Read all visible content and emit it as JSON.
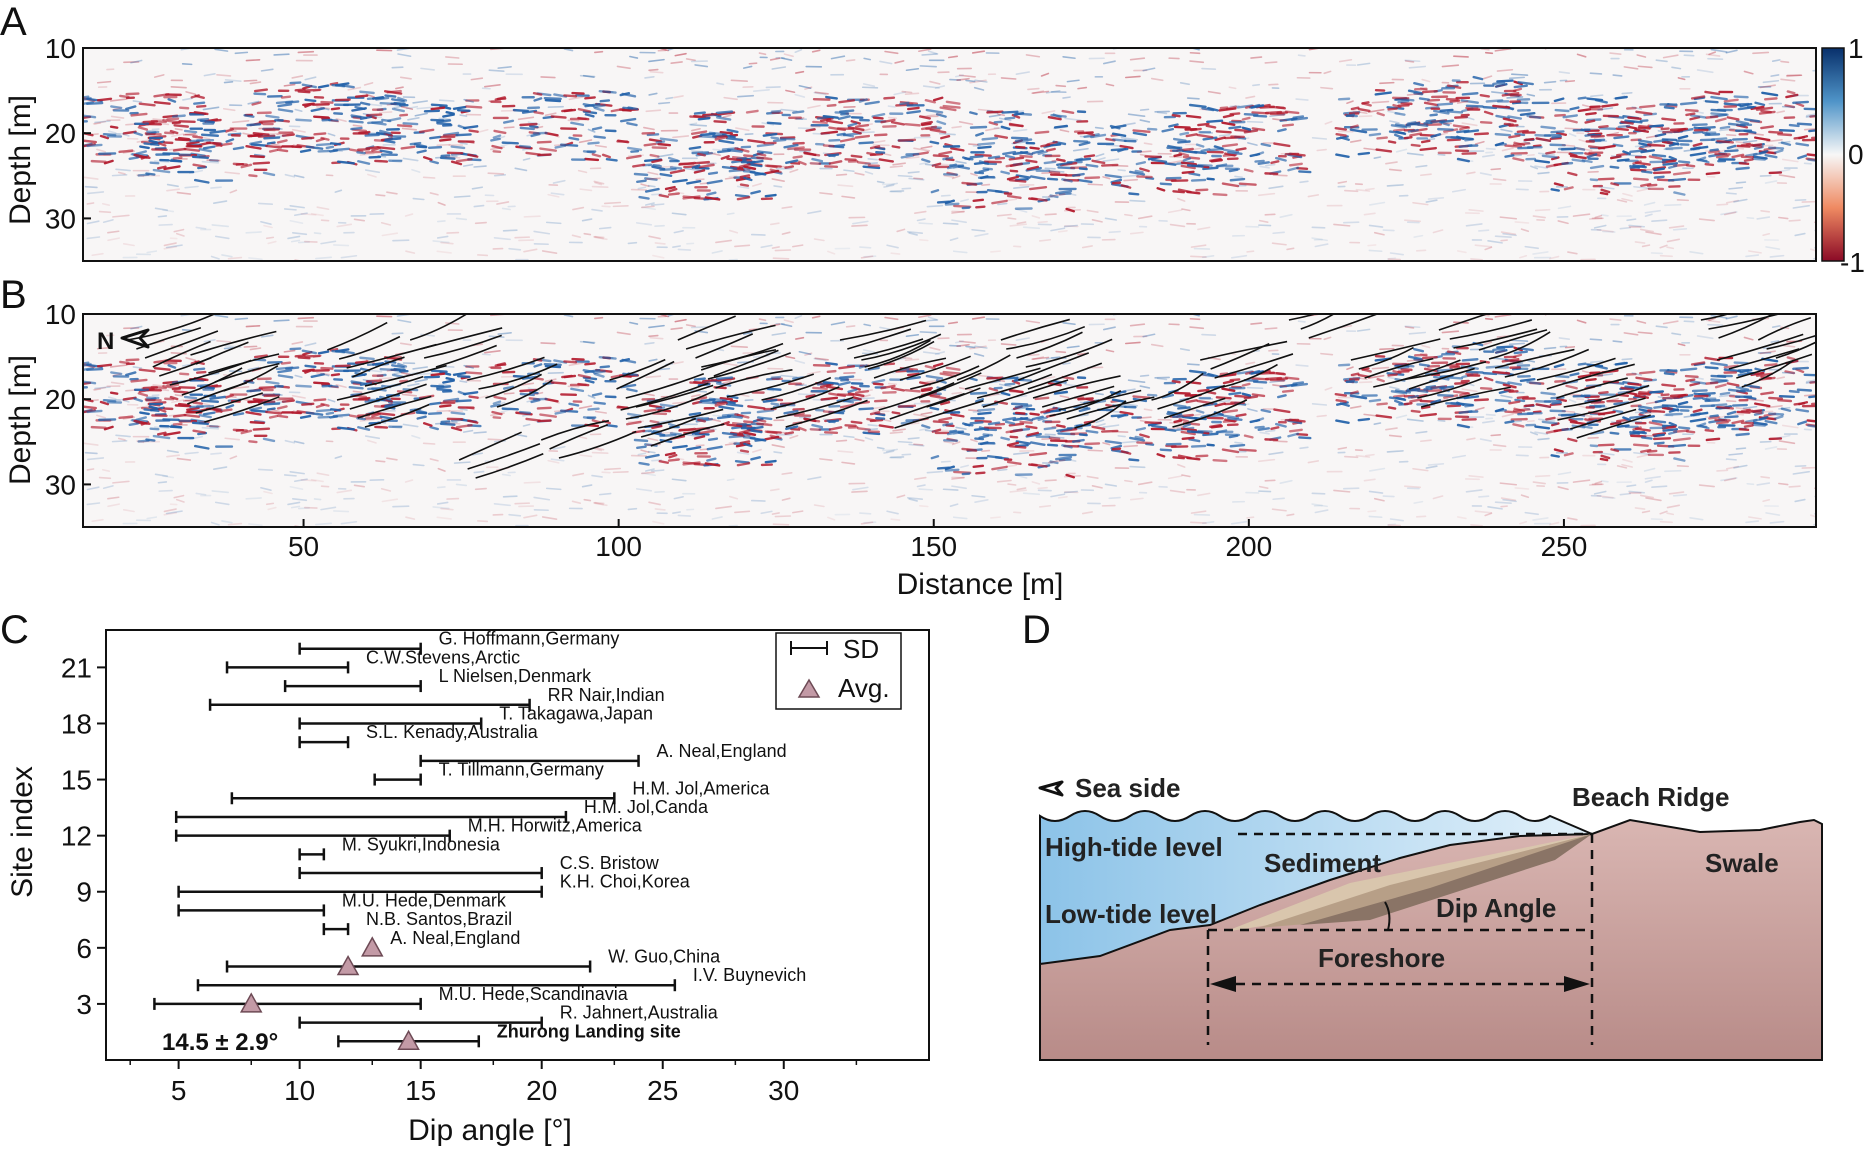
{
  "panel_labels": {
    "a": "A",
    "b": "B",
    "c": "C",
    "d": "D"
  },
  "colors": {
    "positive": "#1f5fa8",
    "negative": "#b2182b",
    "triangle": "#c39aa6",
    "water": "#bcdcf0",
    "ground": "#c9a3a1",
    "sediment_light": "#d9c6ad",
    "sediment_dark": "#8a7466"
  },
  "chart_data": [
    {
      "type": "heatmap",
      "panel": "A",
      "ylabel": "Depth [m]",
      "y_ticks": [
        "10",
        "20",
        "30"
      ],
      "ylim": [
        35,
        10
      ],
      "xlim": [
        15,
        290
      ],
      "colorbar": {
        "ticks": [
          "1",
          "0",
          "-1"
        ],
        "range": [
          -1,
          1
        ]
      },
      "description_values": {
        "value_range": [
          -1,
          1
        ]
      }
    },
    {
      "type": "heatmap",
      "panel": "B",
      "ylabel": "Depth [m]",
      "xlabel": "Distance [m]",
      "y_ticks": [
        "10",
        "20",
        "30"
      ],
      "x_ticks": [
        "50",
        "100",
        "150",
        "200",
        "250"
      ],
      "ylim": [
        35,
        10
      ],
      "xlim": [
        15,
        290
      ],
      "north_label": "N"
    },
    {
      "type": "errorbar",
      "panel": "C",
      "xlabel": "Dip angle [°]",
      "ylabel": "Site index",
      "xlim": [
        2,
        36
      ],
      "ylim": [
        0,
        23
      ],
      "x_ticks": [
        "5",
        "10",
        "15",
        "20",
        "25",
        "30"
      ],
      "y_ticks": [
        "3",
        "6",
        "9",
        "12",
        "15",
        "18",
        "21"
      ],
      "legend": {
        "sd": "SD",
        "avg": "Avg.",
        "position": "top-right"
      },
      "annotation": "14.5 ± 2.9°",
      "sites": [
        {
          "index": 22,
          "min": 10,
          "max": 15,
          "avg": null,
          "label": "G. Hoffmann,Germany"
        },
        {
          "index": 21,
          "min": 7,
          "max": 12,
          "avg": null,
          "label": "C.W.Stevens,Arctic"
        },
        {
          "index": 20,
          "min": 9.4,
          "max": 15,
          "avg": null,
          "label": "L Nielsen,Denmark"
        },
        {
          "index": 19,
          "min": 6.3,
          "max": 19.5,
          "avg": null,
          "label": "RR Nair,Indian"
        },
        {
          "index": 18,
          "min": 10,
          "max": 17.5,
          "avg": null,
          "label": "T. Takagawa,Japan"
        },
        {
          "index": 17,
          "min": 10,
          "max": 12,
          "avg": null,
          "label": "S.L. Kenady,Australia"
        },
        {
          "index": 16,
          "min": 15,
          "max": 24,
          "avg": null,
          "label": "A. Neal,England"
        },
        {
          "index": 15,
          "min": 13.1,
          "max": 15,
          "avg": null,
          "label": "T. Tillmann,Germany"
        },
        {
          "index": 14,
          "min": 7.2,
          "max": 23,
          "avg": null,
          "label": "H.M. Jol,America"
        },
        {
          "index": 13,
          "min": 4.9,
          "max": 21,
          "avg": null,
          "label": "H.M. Jol,Canda"
        },
        {
          "index": 12,
          "min": 4.9,
          "max": 16.2,
          "avg": null,
          "label": "M.H. Horwitz,America"
        },
        {
          "index": 11,
          "min": 10,
          "max": 11,
          "avg": null,
          "label": "M. Syukri,Indonesia"
        },
        {
          "index": 10,
          "min": 10,
          "max": 20,
          "avg": null,
          "label": "C.S. Bristow"
        },
        {
          "index": 9,
          "min": 5,
          "max": 20,
          "avg": null,
          "label": "K.H. Choi,Korea"
        },
        {
          "index": 8,
          "min": 5,
          "max": 11,
          "avg": null,
          "label": "M.U. Hede,Denmark"
        },
        {
          "index": 7,
          "min": 11,
          "max": 12,
          "avg": null,
          "label": "N.B. Santos,Brazil"
        },
        {
          "index": 6,
          "min": null,
          "max": null,
          "avg": 13,
          "label": "A. Neal,England"
        },
        {
          "index": 5,
          "min": 7,
          "max": 22,
          "avg": 12,
          "label": "W. Guo,China"
        },
        {
          "index": 4,
          "min": 5.8,
          "max": 25.5,
          "avg": null,
          "label": "I.V. Buynevich"
        },
        {
          "index": 3,
          "min": 4,
          "max": 15,
          "avg": 8,
          "label": "M.U. Hede,Scandinavia"
        },
        {
          "index": 2,
          "min": 10,
          "max": 20,
          "avg": null,
          "label": "R. Jahnert,Australia"
        },
        {
          "index": 1,
          "min": 11.6,
          "max": 17.4,
          "avg": 14.5,
          "label": "Zhurong Landing site"
        }
      ]
    }
  ],
  "diagram_d": {
    "sea_side": "Sea side",
    "beach_ridge": "Beach Ridge",
    "high_tide": "High-tide level",
    "sediment": "Sediment",
    "swale": "Swale",
    "low_tide": "Low-tide level",
    "dip_angle": "Dip Angle",
    "foreshore": "Foreshore"
  }
}
